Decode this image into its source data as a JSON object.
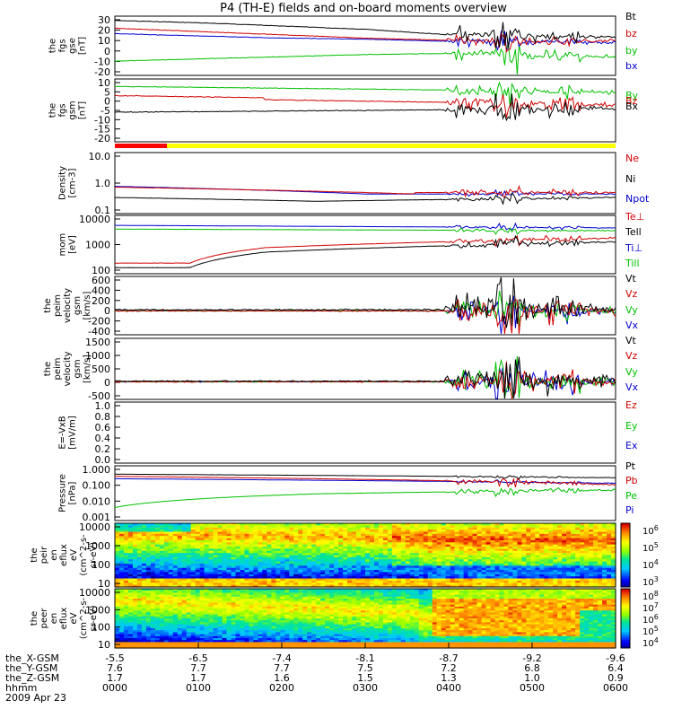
{
  "title": "P4 (TH-E) fields and on-board moments overview",
  "panels": [
    {
      "id": "fgs-gse",
      "ylabel": [
        "the",
        "fgs",
        "gse",
        "[nT]"
      ],
      "ticks": [
        "30",
        "20",
        "10",
        "0",
        "-10",
        "-20"
      ],
      "legend": [
        {
          "t": "Bt",
          "c": "#000000"
        },
        {
          "t": "bz",
          "c": "#d00000"
        },
        {
          "t": "by",
          "c": "#00c000"
        },
        {
          "t": "bx",
          "c": "#0000d0"
        }
      ]
    },
    {
      "id": "fgs-gsm",
      "ylabel": [
        "the",
        "fgs",
        "gsm",
        "[nT]"
      ],
      "ticks": [
        "10",
        "5",
        "0",
        "-5",
        "-10",
        "-15",
        "-20"
      ],
      "legend": [
        {
          "t": "By",
          "c": "#00c000"
        },
        {
          "t": "Bz",
          "c": "#d00000"
        },
        {
          "t": "Bx",
          "c": "#000000"
        }
      ]
    },
    {
      "id": "density",
      "ylabel": [
        "Density",
        "[cm-3]"
      ],
      "ticks": [
        "10.0",
        "1.0",
        "0.1"
      ],
      "legend": [
        {
          "t": "Ne",
          "c": "#d00000"
        },
        {
          "t": "Ni",
          "c": "#000000"
        },
        {
          "t": "Npot",
          "c": "#0000d0"
        }
      ]
    },
    {
      "id": "temperature",
      "ylabel": [
        "mom",
        "[eV]"
      ],
      "ticks": [
        "10000",
        "1000",
        "100"
      ],
      "legend": [
        {
          "t": "Te⊥",
          "c": "#d00000"
        },
        {
          "t": "Tell",
          "c": "#000000"
        },
        {
          "t": "Ti⊥",
          "c": "#0000d0"
        },
        {
          "t": "Till",
          "c": "#00c000"
        }
      ]
    },
    {
      "id": "eperp-velocity",
      "ylabel": [
        "the",
        "peim",
        "velocity",
        "gsm",
        "[km/s]"
      ],
      "ticks": [
        "600",
        "400",
        "200",
        "0",
        "-200",
        "-400"
      ],
      "legend": [
        {
          "t": "Vt",
          "c": "#000000"
        },
        {
          "t": "Vz",
          "c": "#d00000"
        },
        {
          "t": "Vy",
          "c": "#00c000"
        },
        {
          "t": "Vx",
          "c": "#0000d0"
        }
      ]
    },
    {
      "id": "ipar-velocity",
      "ylabel": [
        "the",
        "peim",
        "velocity",
        "gsm",
        "[km/s]"
      ],
      "ticks": [
        "1500",
        "1000",
        "500",
        "0",
        "-500"
      ],
      "legend": [
        {
          "t": "Vt",
          "c": "#000000"
        },
        {
          "t": "Vz",
          "c": "#d00000"
        },
        {
          "t": "Vy",
          "c": "#00c000"
        },
        {
          "t": "Vx",
          "c": "#0000d0"
        }
      ]
    },
    {
      "id": "efield",
      "ylabel": [
        "E=-VxB",
        "[mV/m]"
      ],
      "ticks": [
        "1.0",
        "0.8",
        "0.6",
        "0.4",
        "0.2",
        "0.0"
      ],
      "legend": [
        {
          "t": "Ez",
          "c": "#d00000"
        },
        {
          "t": "Ey",
          "c": "#00c000"
        },
        {
          "t": "Ex",
          "c": "#0000d0"
        }
      ]
    },
    {
      "id": "pressure",
      "ylabel": [
        "Pressure",
        "[nPa]"
      ],
      "ticks": [
        "1.000",
        "0.100",
        "0.010",
        "0.001"
      ],
      "legend": [
        {
          "t": "Pt",
          "c": "#000000"
        },
        {
          "t": "Pb",
          "c": "#d00000"
        },
        {
          "t": "Pe",
          "c": "#00c000"
        },
        {
          "t": "Pi",
          "c": "#0000d0"
        }
      ]
    },
    {
      "id": "ion-spectrogram",
      "ylabel": [
        "the",
        "peir",
        "en",
        "eflux",
        "eV",
        "(cm^2-s-",
        "sr-eV)"
      ],
      "ticks": [
        "10000",
        "1000",
        "100",
        "10"
      ],
      "legend": [],
      "colorbar": [
        "10^6",
        "10^5",
        "10^4",
        "10^3"
      ]
    },
    {
      "id": "electron-spectrogram",
      "ylabel": [
        "the",
        "peer",
        "en",
        "eflux",
        "eV",
        "(cm^2-s-",
        "sr-eV)"
      ],
      "ticks": [
        "10000",
        "1000",
        "100",
        "10"
      ],
      "legend": [],
      "colorbar": [
        "10^8",
        "10^7",
        "10^6",
        "10^5",
        "10^4"
      ]
    }
  ],
  "ephemeris": {
    "row_labels": [
      "the_X-GSM",
      "the_Y-GSM",
      "the_Z-GSM",
      "hhmm",
      "2009 Apr 23"
    ],
    "columns": [
      [
        "-5.5",
        "7.6",
        "1.7",
        "0000"
      ],
      [
        "-6.5",
        "7.7",
        "1.7",
        "0100"
      ],
      [
        "-7.4",
        "7.7",
        "1.6",
        "0200"
      ],
      [
        "-8.1",
        "7.5",
        "1.5",
        "0300"
      ],
      [
        "-8.7",
        "7.2",
        "1.3",
        "0400"
      ],
      [
        "-9.2",
        "6.8",
        "1.0",
        "0500"
      ],
      [
        "-9.6",
        "6.4",
        "0.9",
        "0600"
      ]
    ]
  },
  "colors": {
    "black": "#000000",
    "red": "#d00000",
    "green": "#00c000",
    "blue": "#0000d0",
    "bar_red": "#ff0000",
    "bar_yellow": "#ffff00"
  },
  "chart_data": {
    "type": "line",
    "title": "P4 (TH-E) fields and on-board moments overview",
    "x": [
      "0000",
      "0100",
      "0200",
      "0300",
      "0400",
      "0500",
      "0600"
    ],
    "xlabel": "hhmm",
    "series": [
      {
        "name": "Bt",
        "values": [
          28,
          26,
          23,
          20,
          15,
          14,
          13
        ]
      },
      {
        "name": "bz",
        "values": [
          21,
          18,
          15,
          12,
          10,
          9,
          9
        ]
      },
      {
        "name": "by",
        "values": [
          -9,
          -7,
          -5,
          -3,
          -2,
          -4,
          -5
        ]
      },
      {
        "name": "bx",
        "values": [
          16,
          14,
          12,
          11,
          9,
          8,
          8
        ]
      }
    ],
    "ylim": [
      -20,
      30
    ],
    "grid": false
  }
}
